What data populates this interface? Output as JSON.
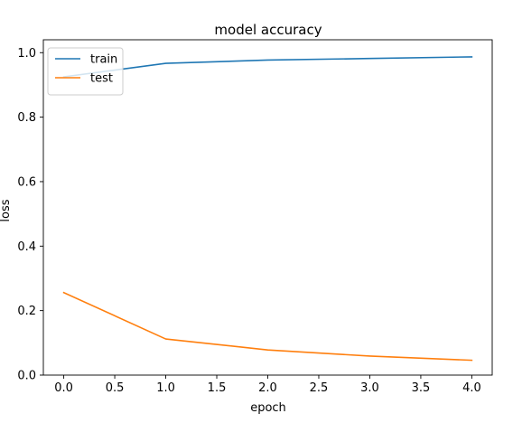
{
  "chart_data": {
    "type": "line",
    "title": "model accuracy",
    "xlabel": "epoch",
    "ylabel": "loss",
    "xlim": [
      -0.2,
      4.2
    ],
    "ylim": [
      0.0,
      1.04
    ],
    "xticks": [
      0.0,
      0.5,
      1.0,
      1.5,
      2.0,
      2.5,
      3.0,
      3.5,
      4.0
    ],
    "xtick_labels": [
      "0.0",
      "0.5",
      "1.0",
      "1.5",
      "2.0",
      "2.5",
      "3.0",
      "3.5",
      "4.0"
    ],
    "yticks": [
      0.0,
      0.2,
      0.4,
      0.6,
      0.8,
      1.0
    ],
    "ytick_labels": [
      "0.0",
      "0.2",
      "0.4",
      "0.6",
      "0.8",
      "1.0"
    ],
    "x": [
      0,
      1,
      2,
      3,
      4
    ],
    "series": [
      {
        "name": "train",
        "color": "#1f77b4",
        "values": [
          0.925,
          0.967,
          0.977,
          0.982,
          0.987
        ]
      },
      {
        "name": "test",
        "color": "#ff7f0e",
        "values": [
          0.256,
          0.112,
          0.078,
          0.059,
          0.046
        ]
      }
    ],
    "legend": {
      "position": "upper left"
    },
    "grid": false
  }
}
